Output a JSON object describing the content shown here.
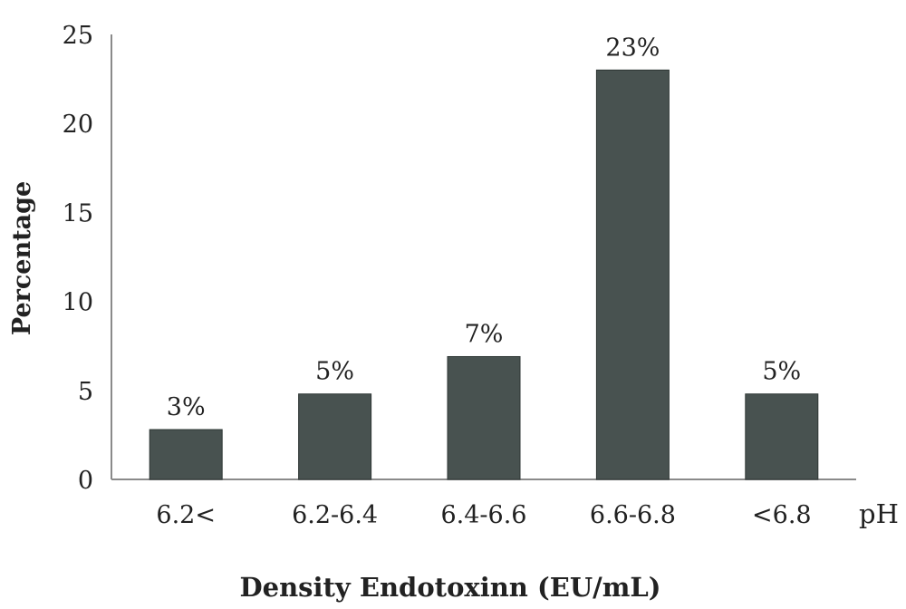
{
  "chart_data": {
    "type": "bar",
    "categories": [
      "6.2<",
      "6.2-6.4",
      "6.4-6.6",
      "6.6-6.8",
      "<6.8"
    ],
    "values": [
      2.8,
      4.8,
      6.9,
      23.0,
      4.8
    ],
    "data_labels": [
      "3%",
      "5%",
      "7%",
      "23%",
      "5%"
    ],
    "ylabel": "Percentage",
    "xlabel": "Density Endotoxinn (EU/mL)",
    "x_unit_label": "pH",
    "ylim": [
      0,
      25
    ],
    "yticks": [
      0,
      5,
      10,
      15,
      20,
      25
    ],
    "bar_color": "#485250",
    "grid": false,
    "legend": "none"
  }
}
